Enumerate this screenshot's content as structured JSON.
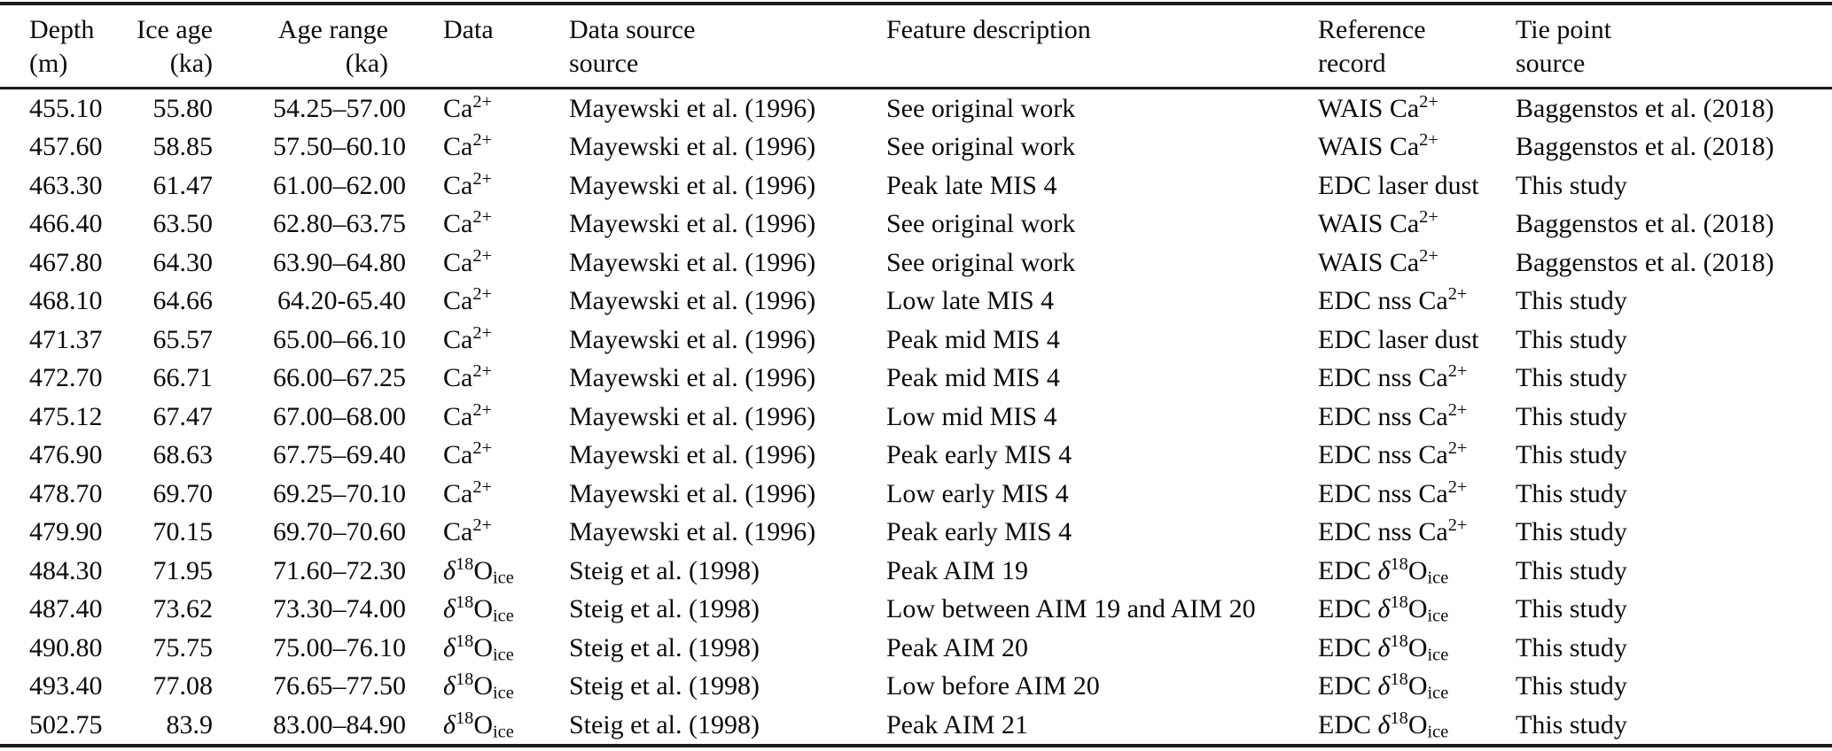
{
  "table": {
    "columns": [
      {
        "id": "depth",
        "line1": "Depth",
        "line2": "(m)"
      },
      {
        "id": "ice_age",
        "line1": "Ice age",
        "line2": "(ka)"
      },
      {
        "id": "age_range",
        "line1": "Age range",
        "line2": "(ka)"
      },
      {
        "id": "data",
        "line1": "Data",
        "line2": ""
      },
      {
        "id": "data_source",
        "line1": "Data source",
        "line2": "source"
      },
      {
        "id": "feature",
        "line1": "Feature description",
        "line2": ""
      },
      {
        "id": "reference",
        "line1": "Reference",
        "line2": "record"
      },
      {
        "id": "tie_point",
        "line1": "Tie point",
        "line2": "source"
      }
    ],
    "rows": [
      [
        "455.10",
        "55.80",
        "54.25–57.00",
        "Ca^{2+}",
        "Mayewski et al. (1996)",
        "See original work",
        "WAIS Ca^{2+}",
        "Baggenstos et al. (2018)"
      ],
      [
        "457.60",
        "58.85",
        "57.50–60.10",
        "Ca^{2+}",
        "Mayewski et al. (1996)",
        "See original work",
        "WAIS Ca^{2+}",
        "Baggenstos et al. (2018)"
      ],
      [
        "463.30",
        "61.47",
        "61.00–62.00",
        "Ca^{2+}",
        "Mayewski et al. (1996)",
        "Peak late MIS 4",
        "EDC laser dust",
        "This study"
      ],
      [
        "466.40",
        "63.50",
        "62.80–63.75",
        "Ca^{2+}",
        "Mayewski et al. (1996)",
        "See original work",
        "WAIS Ca^{2+}",
        "Baggenstos et al. (2018)"
      ],
      [
        "467.80",
        "64.30",
        "63.90–64.80",
        "Ca^{2+}",
        "Mayewski et al. (1996)",
        "See original work",
        "WAIS Ca^{2+}",
        "Baggenstos et al. (2018)"
      ],
      [
        "468.10",
        "64.66",
        "64.20-65.40",
        "Ca^{2+}",
        "Mayewski et al. (1996)",
        "Low late MIS 4",
        "EDC nss Ca^{2+}",
        "This study"
      ],
      [
        "471.37",
        "65.57",
        "65.00–66.10",
        "Ca^{2+}",
        "Mayewski et al. (1996)",
        "Peak mid MIS 4",
        "EDC laser dust",
        "This study"
      ],
      [
        "472.70",
        "66.71",
        "66.00–67.25",
        "Ca^{2+}",
        "Mayewski et al. (1996)",
        "Peak mid MIS 4",
        "EDC nss Ca^{2+}",
        "This study"
      ],
      [
        "475.12",
        "67.47",
        "67.00–68.00",
        "Ca^{2+}",
        "Mayewski et al. (1996)",
        "Low mid MIS 4",
        "EDC nss Ca^{2+}",
        "This study"
      ],
      [
        "476.90",
        "68.63",
        "67.75–69.40",
        "Ca^{2+}",
        "Mayewski et al. (1996)",
        "Peak early MIS 4",
        "EDC nss Ca^{2+}",
        "This study"
      ],
      [
        "478.70",
        "69.70",
        "69.25–70.10",
        "Ca^{2+}",
        "Mayewski et al. (1996)",
        "Low early MIS 4",
        "EDC nss Ca^{2+}",
        "This study"
      ],
      [
        "479.90",
        "70.15",
        "69.70–70.60",
        "Ca^{2+}",
        "Mayewski et al. (1996)",
        "Peak early MIS 4",
        "EDC nss Ca^{2+}",
        "This study"
      ],
      [
        "484.30",
        "71.95",
        "71.60–72.30",
        "δ^{18}O_{ice}",
        "Steig et al. (1998)",
        "Peak AIM 19",
        "EDC δ^{18}O_{ice}",
        "This study"
      ],
      [
        "487.40",
        "73.62",
        "73.30–74.00",
        "δ^{18}O_{ice}",
        "Steig et al. (1998)",
        "Low between AIM 19 and AIM 20",
        "EDC δ^{18}O_{ice}",
        "This study"
      ],
      [
        "490.80",
        "75.75",
        "75.00–76.10",
        "δ^{18}O_{ice}",
        "Steig et al. (1998)",
        "Peak AIM 20",
        "EDC δ^{18}O_{ice}",
        "This study"
      ],
      [
        "493.40",
        "77.08",
        "76.65–77.50",
        "δ^{18}O_{ice}",
        "Steig et al. (1998)",
        "Low before AIM 20",
        "EDC δ^{18}O_{ice}",
        "This study"
      ],
      [
        "502.75",
        "83.9",
        "83.00–84.90",
        "δ^{18}O_{ice}",
        "Steig et al. (1998)",
        "Peak AIM 21",
        "EDC δ^{18}O_{ice}",
        "This study"
      ]
    ]
  }
}
